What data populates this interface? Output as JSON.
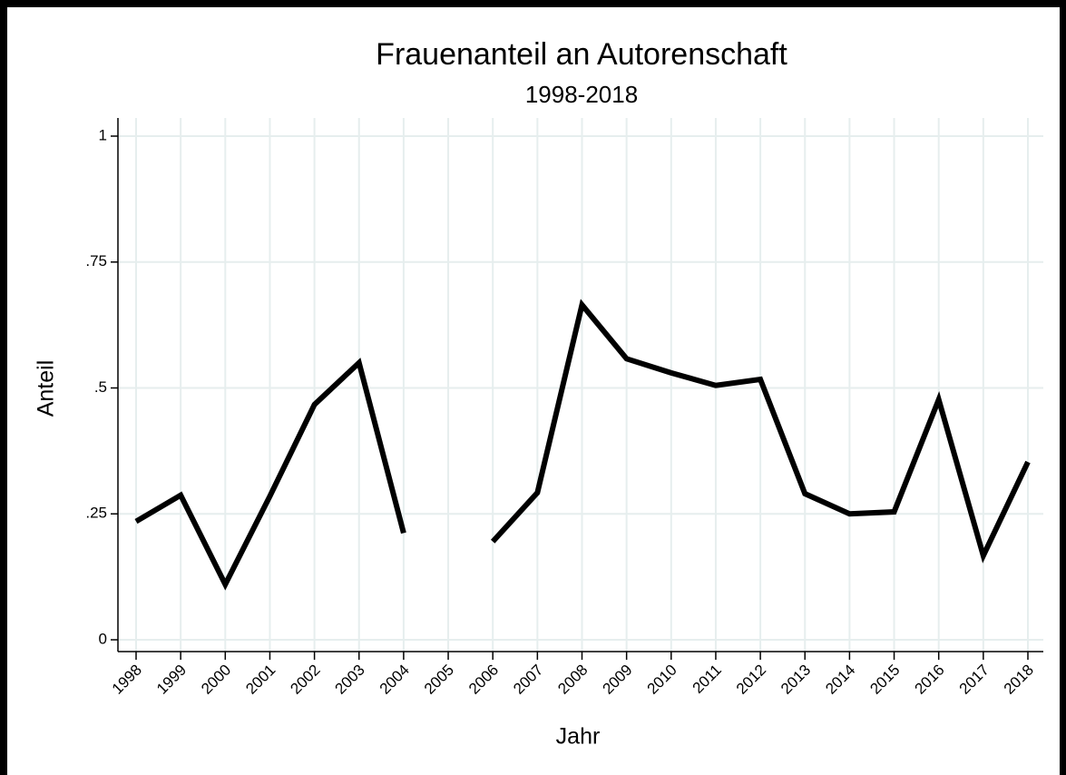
{
  "chart_data": {
    "type": "line",
    "title": "Frauenanteil an Autorenschaft",
    "subtitle": "1998-2018",
    "x_label": "Jahr",
    "y_label": "Anteil",
    "x": [
      1998,
      1999,
      2000,
      2001,
      2002,
      2003,
      2004,
      2005,
      2006,
      2007,
      2008,
      2009,
      2010,
      2011,
      2012,
      2013,
      2014,
      2015,
      2016,
      2017,
      2018
    ],
    "series": [
      {
        "color": "#000000",
        "values": [
          0.235,
          0.287,
          0.11,
          0.285,
          0.467,
          0.55,
          0.212,
          null,
          0.195,
          0.292,
          0.665,
          0.558,
          0.53,
          0.505,
          0.517,
          0.29,
          0.25,
          0.254,
          0.477,
          0.167,
          0.353
        ]
      }
    ],
    "xlim": [
      1998,
      2018
    ],
    "xticks": [
      1998,
      1999,
      2000,
      2001,
      2002,
      2003,
      2004,
      2005,
      2006,
      2007,
      2008,
      2009,
      2010,
      2011,
      2012,
      2013,
      2014,
      2015,
      2016,
      2017,
      2018
    ],
    "ylim": [
      0,
      1
    ],
    "yticks": [
      0,
      {
        "value": 0.25,
        "label": ".25"
      },
      {
        "value": 0.5,
        "label": ".5"
      },
      {
        "value": 0.75,
        "label": ".75"
      },
      1
    ],
    "grid": true
  }
}
